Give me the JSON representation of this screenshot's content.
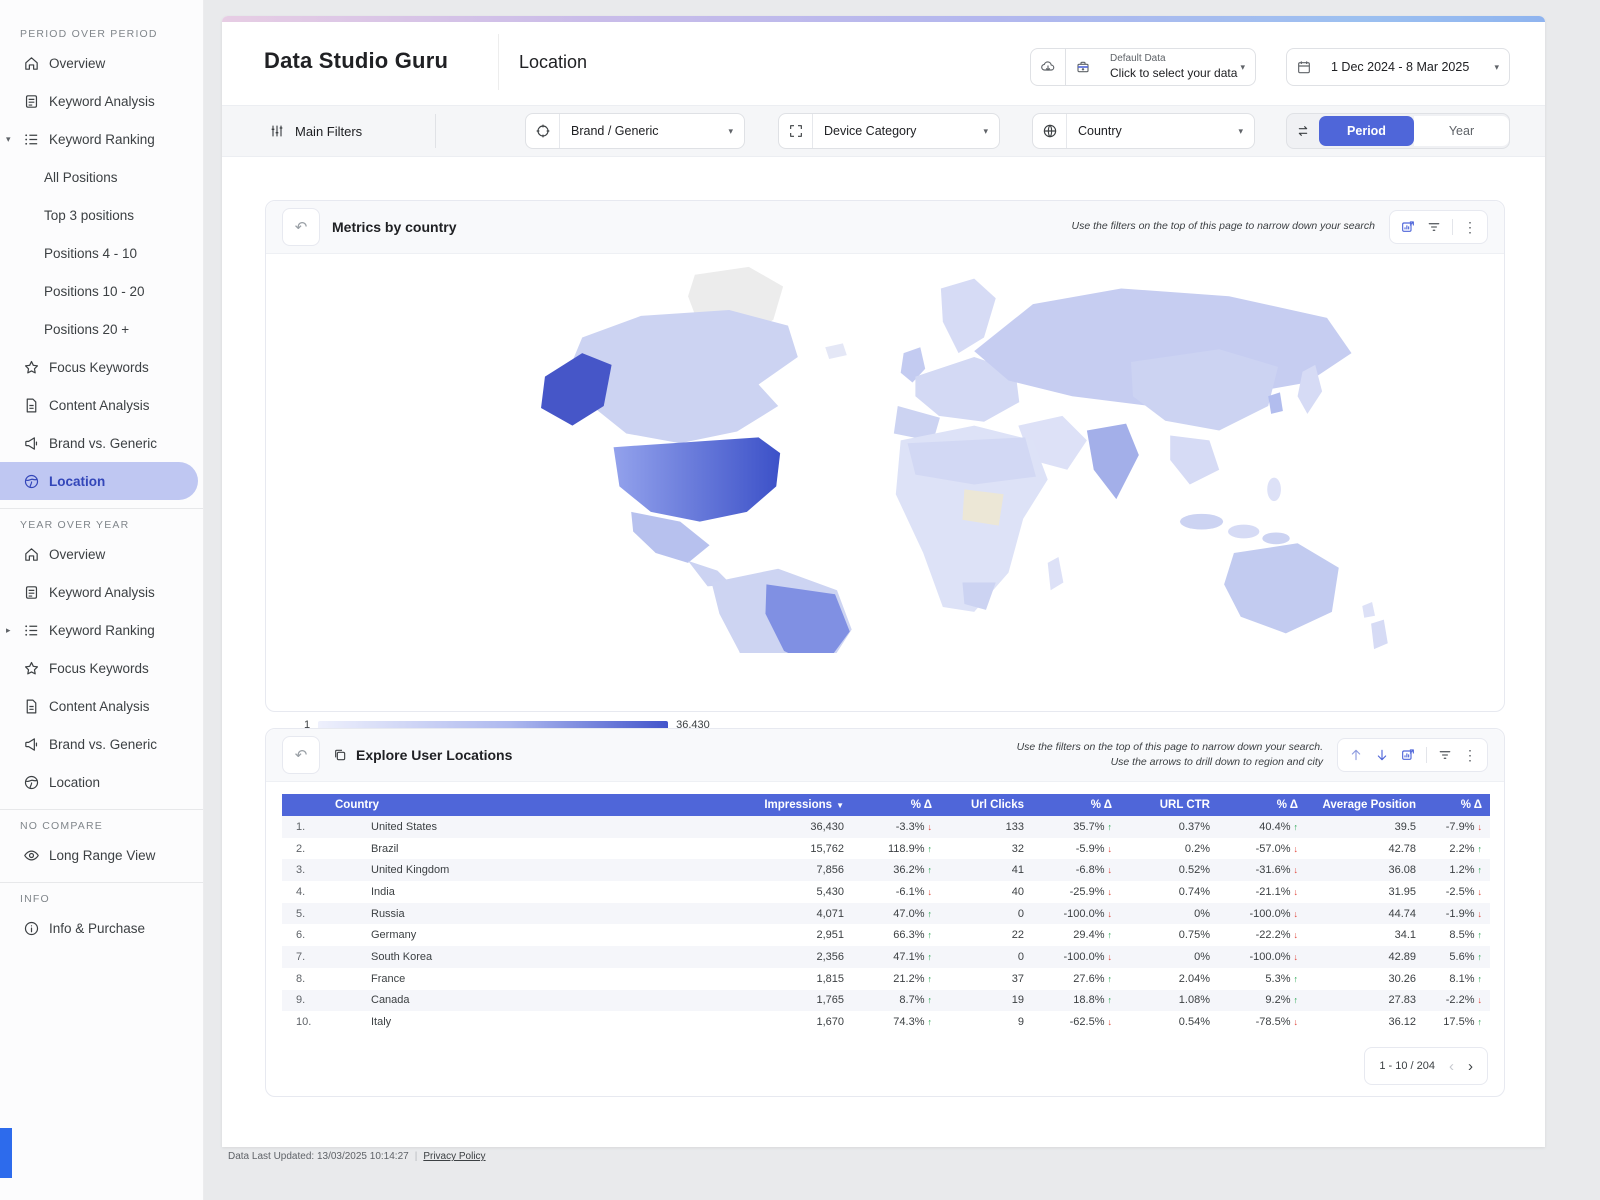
{
  "app": {
    "brand": "Data Studio Guru",
    "page_title": "Location"
  },
  "header": {
    "data_selector": {
      "title": "Default Data",
      "subtitle": "Click to select your data"
    },
    "date_range": "1 Dec 2024 - 8 Mar 2025"
  },
  "filter_bar": {
    "main_filters": "Main Filters",
    "selects": [
      {
        "icon": "target-icon",
        "value": "Brand / Generic"
      },
      {
        "icon": "expand-icon",
        "value": "Device Category"
      },
      {
        "icon": "globe-grid-icon",
        "value": "Country"
      }
    ],
    "toggle": {
      "options": [
        "Period",
        "Year"
      ],
      "active": "Period"
    }
  },
  "sidebar": {
    "sections": [
      {
        "label": "PERIOD OVER PERIOD",
        "items": [
          {
            "label": "Overview",
            "icon": "home-icon"
          },
          {
            "label": "Keyword Analysis",
            "icon": "doc-icon"
          },
          {
            "label": "Keyword Ranking",
            "icon": "list-icon",
            "caret": "down",
            "children": [
              "All Positions",
              "Top 3 positions",
              "Positions 4 - 10",
              "Positions 10 - 20",
              "Positions 20 +"
            ]
          },
          {
            "label": "Focus Keywords",
            "icon": "star-icon"
          },
          {
            "label": "Content Analysis",
            "icon": "file-icon"
          },
          {
            "label": "Brand vs. Generic",
            "icon": "megaphone-icon"
          },
          {
            "label": "Location",
            "icon": "globe-icon",
            "active": true
          }
        ]
      },
      {
        "label": "YEAR OVER YEAR",
        "divider_before": true,
        "items": [
          {
            "label": "Overview",
            "icon": "home-icon"
          },
          {
            "label": "Keyword Analysis",
            "icon": "doc-icon"
          },
          {
            "label": "Keyword Ranking",
            "icon": "list-icon",
            "caret": "right"
          },
          {
            "label": "Focus Keywords",
            "icon": "star-icon"
          },
          {
            "label": "Content Analysis",
            "icon": "file-icon"
          },
          {
            "label": "Brand vs. Generic",
            "icon": "megaphone-icon"
          },
          {
            "label": "Location",
            "icon": "globe-icon"
          }
        ]
      },
      {
        "label": "NO COMPARE",
        "divider_before": true,
        "items": [
          {
            "label": "Long Range View",
            "icon": "eye-icon"
          }
        ]
      },
      {
        "label": "INFO",
        "divider_before": true,
        "items": [
          {
            "label": "Info & Purchase",
            "icon": "info-icon"
          }
        ]
      }
    ]
  },
  "map_card": {
    "title": "Metrics by country",
    "hint": "Use the filters on the top of this page to narrow down your search",
    "legend": {
      "min": "1",
      "max": "36,430"
    }
  },
  "table_card": {
    "title": "Explore User Locations",
    "hint_line1": "Use the filters on the top of this page to narrow down your search.",
    "hint_line2": "Use the arrows to drill down to region and city",
    "columns": [
      "Country",
      "Impressions",
      "% Δ",
      "Url Clicks",
      "% Δ",
      "URL CTR",
      "% Δ",
      "Average Position",
      "% Δ"
    ],
    "rows": [
      {
        "rank": "1.",
        "country": "United States",
        "cells": [
          [
            "36,430",
            null
          ],
          [
            "-3.3%",
            "down"
          ],
          [
            "133",
            null
          ],
          [
            "35.7%",
            "up"
          ],
          [
            "0.37%",
            null
          ],
          [
            "40.4%",
            "up"
          ],
          [
            "39.5",
            null
          ],
          [
            "-7.9%",
            "down"
          ]
        ]
      },
      {
        "rank": "2.",
        "country": "Brazil",
        "cells": [
          [
            "15,762",
            null
          ],
          [
            "118.9%",
            "up"
          ],
          [
            "32",
            null
          ],
          [
            "-5.9%",
            "down"
          ],
          [
            "0.2%",
            null
          ],
          [
            "-57.0%",
            "down"
          ],
          [
            "42.78",
            null
          ],
          [
            "2.2%",
            "up"
          ]
        ]
      },
      {
        "rank": "3.",
        "country": "United Kingdom",
        "cells": [
          [
            "7,856",
            null
          ],
          [
            "36.2%",
            "up"
          ],
          [
            "41",
            null
          ],
          [
            "-6.8%",
            "down"
          ],
          [
            "0.52%",
            null
          ],
          [
            "-31.6%",
            "down"
          ],
          [
            "36.08",
            null
          ],
          [
            "1.2%",
            "up"
          ]
        ]
      },
      {
        "rank": "4.",
        "country": "India",
        "cells": [
          [
            "5,430",
            null
          ],
          [
            "-6.1%",
            "down"
          ],
          [
            "40",
            null
          ],
          [
            "-25.9%",
            "down"
          ],
          [
            "0.74%",
            null
          ],
          [
            "-21.1%",
            "down"
          ],
          [
            "31.95",
            null
          ],
          [
            "-2.5%",
            "down"
          ]
        ]
      },
      {
        "rank": "5.",
        "country": "Russia",
        "cells": [
          [
            "4,071",
            null
          ],
          [
            "47.0%",
            "up"
          ],
          [
            "0",
            null
          ],
          [
            "-100.0%",
            "down"
          ],
          [
            "0%",
            null
          ],
          [
            "-100.0%",
            "down"
          ],
          [
            "44.74",
            null
          ],
          [
            "-1.9%",
            "down"
          ]
        ]
      },
      {
        "rank": "6.",
        "country": "Germany",
        "cells": [
          [
            "2,951",
            null
          ],
          [
            "66.3%",
            "up"
          ],
          [
            "22",
            null
          ],
          [
            "29.4%",
            "up"
          ],
          [
            "0.75%",
            null
          ],
          [
            "-22.2%",
            "down"
          ],
          [
            "34.1",
            null
          ],
          [
            "8.5%",
            "up"
          ]
        ]
      },
      {
        "rank": "7.",
        "country": "South Korea",
        "cells": [
          [
            "2,356",
            null
          ],
          [
            "47.1%",
            "up"
          ],
          [
            "0",
            null
          ],
          [
            "-100.0%",
            "down"
          ],
          [
            "0%",
            null
          ],
          [
            "-100.0%",
            "down"
          ],
          [
            "42.89",
            null
          ],
          [
            "5.6%",
            "up"
          ]
        ]
      },
      {
        "rank": "8.",
        "country": "France",
        "cells": [
          [
            "1,815",
            null
          ],
          [
            "21.2%",
            "up"
          ],
          [
            "37",
            null
          ],
          [
            "27.6%",
            "up"
          ],
          [
            "2.04%",
            null
          ],
          [
            "5.3%",
            "up"
          ],
          [
            "30.26",
            null
          ],
          [
            "8.1%",
            "up"
          ]
        ]
      },
      {
        "rank": "9.",
        "country": "Canada",
        "cells": [
          [
            "1,765",
            null
          ],
          [
            "8.7%",
            "up"
          ],
          [
            "19",
            null
          ],
          [
            "18.8%",
            "up"
          ],
          [
            "1.08%",
            null
          ],
          [
            "9.2%",
            "up"
          ],
          [
            "27.83",
            null
          ],
          [
            "-2.2%",
            "down"
          ]
        ]
      },
      {
        "rank": "10.",
        "country": "Italy",
        "cells": [
          [
            "1,670",
            null
          ],
          [
            "74.3%",
            "up"
          ],
          [
            "9",
            null
          ],
          [
            "-62.5%",
            "down"
          ],
          [
            "0.54%",
            null
          ],
          [
            "-78.5%",
            "down"
          ],
          [
            "36.12",
            null
          ],
          [
            "17.5%",
            "up"
          ]
        ]
      }
    ],
    "pagination": {
      "range": "1 - 10 / 204"
    }
  },
  "footer": {
    "last_updated": "Data Last Updated: 13/03/2025 10:14:27",
    "privacy_link": "Privacy Policy"
  },
  "colors": {
    "accent": "#4f66d9",
    "positive": "#1fa24a",
    "negative": "#e04438",
    "active_item_bg": "#bfc7f2",
    "map_max": "#4254cb",
    "map_no_data": "#ececec"
  }
}
